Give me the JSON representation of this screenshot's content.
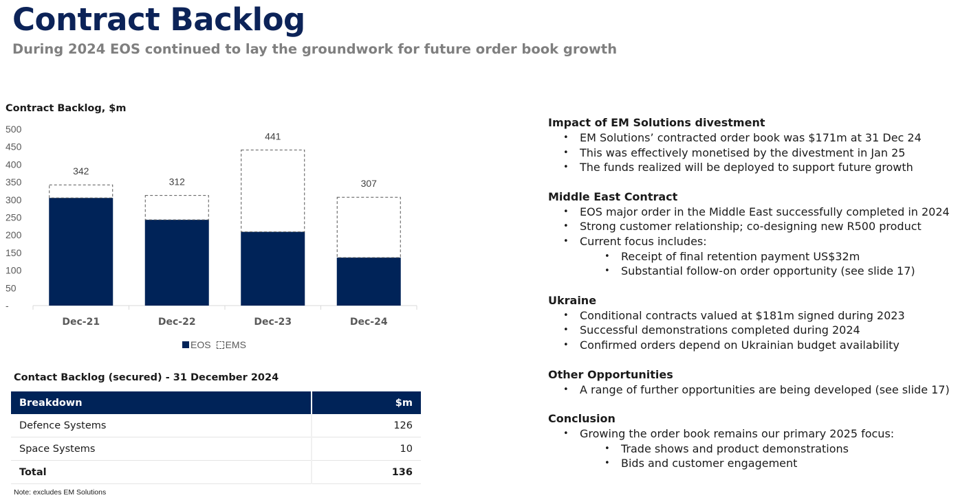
{
  "header": {
    "title": "Contract Backlog",
    "subtitle": "During 2024 EOS continued to lay the groundwork for future order book growth"
  },
  "chart_data": {
    "type": "bar",
    "stacked": true,
    "title": "Contract Backlog, $m",
    "categories": [
      "Dec-21",
      "Dec-22",
      "Dec-23",
      "Dec-24"
    ],
    "series": [
      {
        "name": "EOS",
        "values": [
          305,
          243,
          209,
          136
        ],
        "color": "#002358",
        "style": "solid"
      },
      {
        "name": "EMS",
        "values": [
          37,
          69,
          232,
          171
        ],
        "color": "#555555",
        "style": "dashed"
      }
    ],
    "totals": [
      "342",
      "312",
      "441",
      "307"
    ],
    "ylim": [
      0,
      500
    ],
    "yticks": [
      "-",
      "50",
      "100",
      "150",
      "200",
      "250",
      "300",
      "350",
      "400",
      "450",
      "500"
    ],
    "ytick_values": [
      0,
      50,
      100,
      150,
      200,
      250,
      300,
      350,
      400,
      450,
      500
    ],
    "legend": "bottom",
    "grid": false
  },
  "table": {
    "title": "Contact Backlog (secured) - 31 December 2024",
    "headers": [
      "Breakdown",
      "$m"
    ],
    "rows": [
      {
        "label": "Defence Systems",
        "value": "126"
      },
      {
        "label": "Space Systems",
        "value": "10"
      }
    ],
    "total": {
      "label": "Total",
      "value": "136"
    },
    "note": "Note: excludes EM Solutions"
  },
  "sections": [
    {
      "heading": "Impact of EM Solutions divestment",
      "items": [
        {
          "text": "EM Solutions’ contracted order book was $171m at 31 Dec 24",
          "level": 1
        },
        {
          "text": "This was effectively monetised by the divestment in Jan 25",
          "level": 1
        },
        {
          "text": "The funds realized will be deployed to support future growth",
          "level": 1
        }
      ]
    },
    {
      "heading": "Middle East Contract",
      "items": [
        {
          "text": "EOS major order in the Middle East successfully completed in 2024",
          "level": 1
        },
        {
          "text": "Strong customer relationship; co-designing new R500 product",
          "level": 1
        },
        {
          "text": "Current focus includes:",
          "level": 1
        },
        {
          "text": "Receipt of final retention payment US$32m",
          "level": 2
        },
        {
          "text": "Substantial follow-on order opportunity (see slide 17)",
          "level": 2
        }
      ]
    },
    {
      "heading": "Ukraine",
      "items": [
        {
          "text": "Conditional contracts valued at $181m signed during 2023",
          "level": 1
        },
        {
          "text": "Successful demonstrations completed during 2024",
          "level": 1
        },
        {
          "text": "Confirmed orders depend on Ukrainian budget availability",
          "level": 1
        }
      ]
    },
    {
      "heading": "Other Opportunities",
      "items": [
        {
          "text": "A range of further opportunities are being developed (see slide 17)",
          "level": 1
        }
      ]
    },
    {
      "heading": "Conclusion",
      "items": [
        {
          "text": "Growing the order book remains our primary 2025 focus:",
          "level": 1
        },
        {
          "text": "Trade shows and product demonstrations",
          "level": 2
        },
        {
          "text": "Bids and customer engagement",
          "level": 2
        }
      ]
    }
  ]
}
